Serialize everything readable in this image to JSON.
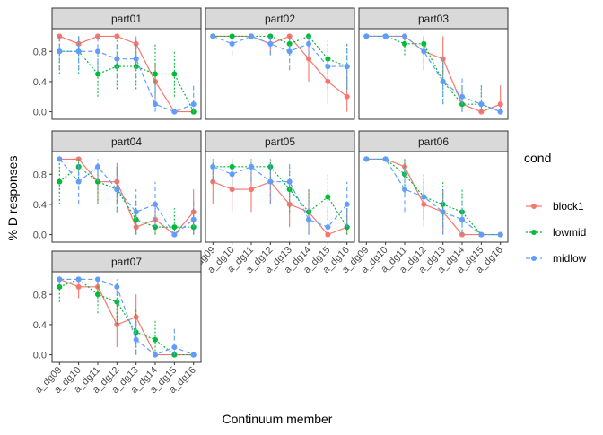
{
  "chart_data": {
    "type": "line",
    "xlabel": "Continuum member",
    "ylabel": "% D responses",
    "ylim": [
      -0.1,
      1.1
    ],
    "yticks": [
      0.0,
      0.4,
      0.8
    ],
    "ytick_labels": [
      "0.0",
      "0.4",
      "0.8"
    ],
    "categories": [
      "a_dg09",
      "a_dg10",
      "a_dg11",
      "a_dg12",
      "a_dg13",
      "a_dg14",
      "a_dg15",
      "a_dg16"
    ],
    "legend": {
      "title": "cond",
      "position": "right",
      "items": [
        {
          "name": "block1",
          "color": "#F8766D",
          "dash": "solid"
        },
        {
          "name": "lowmid",
          "color": "#00BA38",
          "dash": "dotted"
        },
        {
          "name": "midlow",
          "color": "#619CFF",
          "dash": "dashed"
        }
      ]
    },
    "panels": [
      {
        "name": "part01",
        "series": [
          {
            "name": "block1",
            "values": [
              1.0,
              0.9,
              1.0,
              1.0,
              0.9,
              0.4,
              0.0,
              0.0
            ],
            "lower": [
              1.0,
              0.75,
              1.0,
              1.0,
              0.75,
              0.1,
              0.0,
              0.0
            ],
            "upper": [
              1.0,
              1.0,
              1.0,
              1.0,
              1.0,
              0.65,
              0.0,
              0.0
            ]
          },
          {
            "name": "lowmid",
            "values": [
              0.8,
              0.8,
              0.5,
              0.6,
              0.6,
              0.5,
              0.5,
              0.0
            ],
            "lower": [
              0.5,
              0.5,
              0.2,
              0.3,
              0.3,
              0.2,
              0.2,
              0.0
            ],
            "upper": [
              1.0,
              1.0,
              0.8,
              0.9,
              0.9,
              0.9,
              0.8,
              0.0
            ]
          },
          {
            "name": "midlow",
            "values": [
              0.8,
              0.8,
              0.8,
              0.7,
              0.7,
              0.1,
              0.0,
              0.1
            ],
            "lower": [
              0.55,
              0.55,
              0.55,
              0.45,
              0.45,
              0.0,
              0.0,
              0.0
            ],
            "upper": [
              1.0,
              1.0,
              1.0,
              0.95,
              0.95,
              0.35,
              0.0,
              0.35
            ]
          }
        ]
      },
      {
        "name": "part02",
        "series": [
          {
            "name": "block1",
            "values": [
              1.0,
              1.0,
              1.0,
              0.9,
              1.0,
              0.7,
              0.4,
              0.2
            ],
            "lower": [
              1.0,
              1.0,
              1.0,
              0.75,
              1.0,
              0.4,
              0.1,
              0.0
            ],
            "upper": [
              1.0,
              1.0,
              1.0,
              1.0,
              1.0,
              1.0,
              0.7,
              0.5
            ]
          },
          {
            "name": "lowmid",
            "values": [
              1.0,
              1.0,
              1.0,
              1.0,
              0.9,
              1.0,
              0.7,
              0.6
            ],
            "lower": [
              1.0,
              1.0,
              1.0,
              1.0,
              0.75,
              1.0,
              0.4,
              0.3
            ],
            "upper": [
              1.0,
              1.0,
              1.0,
              1.0,
              1.0,
              1.0,
              0.95,
              0.9
            ]
          },
          {
            "name": "midlow",
            "values": [
              1.0,
              0.9,
              1.0,
              0.9,
              0.8,
              0.9,
              0.6,
              0.6
            ],
            "lower": [
              1.0,
              0.75,
              1.0,
              0.75,
              0.55,
              0.75,
              0.3,
              0.3
            ],
            "upper": [
              1.0,
              1.0,
              1.0,
              1.0,
              1.0,
              1.0,
              0.9,
              0.9
            ]
          }
        ]
      },
      {
        "name": "part03",
        "series": [
          {
            "name": "block1",
            "values": [
              1.0,
              1.0,
              1.0,
              0.8,
              0.7,
              0.1,
              0.0,
              0.1
            ],
            "lower": [
              1.0,
              1.0,
              1.0,
              0.55,
              0.4,
              0.0,
              0.0,
              0.0
            ],
            "upper": [
              1.0,
              1.0,
              1.0,
              1.0,
              1.0,
              0.35,
              0.0,
              0.35
            ]
          },
          {
            "name": "lowmid",
            "values": [
              1.0,
              1.0,
              0.9,
              0.9,
              0.4,
              0.1,
              0.1,
              0.0
            ],
            "lower": [
              1.0,
              1.0,
              0.75,
              0.75,
              0.1,
              0.0,
              0.0,
              0.0
            ],
            "upper": [
              1.0,
              1.0,
              1.0,
              1.0,
              0.7,
              0.35,
              0.35,
              0.0
            ]
          },
          {
            "name": "midlow",
            "values": [
              1.0,
              1.0,
              1.0,
              0.8,
              0.4,
              0.2,
              0.1,
              0.0
            ],
            "lower": [
              1.0,
              1.0,
              1.0,
              0.55,
              0.1,
              0.0,
              0.0,
              0.0
            ],
            "upper": [
              1.0,
              1.0,
              1.0,
              1.0,
              0.7,
              0.45,
              0.35,
              0.0
            ]
          }
        ]
      },
      {
        "name": "part04",
        "series": [
          {
            "name": "block1",
            "values": [
              1.0,
              1.0,
              0.7,
              0.7,
              0.1,
              0.2,
              0.0,
              0.3
            ],
            "lower": [
              1.0,
              1.0,
              0.4,
              0.4,
              0.0,
              0.0,
              0.0,
              0.0
            ],
            "upper": [
              1.0,
              1.0,
              0.95,
              0.95,
              0.35,
              0.45,
              0.0,
              0.6
            ]
          },
          {
            "name": "lowmid",
            "values": [
              0.7,
              0.9,
              0.7,
              0.6,
              0.2,
              0.1,
              0.1,
              0.1
            ],
            "lower": [
              0.4,
              0.7,
              0.4,
              0.3,
              0.0,
              0.0,
              0.0,
              0.0
            ],
            "upper": [
              0.95,
              1.0,
              0.95,
              0.9,
              0.45,
              0.35,
              0.35,
              0.35
            ]
          },
          {
            "name": "midlow",
            "values": [
              1.0,
              0.7,
              0.9,
              0.6,
              0.3,
              0.4,
              0.0,
              0.2
            ],
            "lower": [
              1.0,
              0.4,
              0.7,
              0.3,
              0.0,
              0.1,
              0.0,
              0.0
            ],
            "upper": [
              1.0,
              0.95,
              1.0,
              0.9,
              0.6,
              0.7,
              0.0,
              0.45
            ]
          }
        ]
      },
      {
        "name": "part05",
        "series": [
          {
            "name": "block1",
            "values": [
              0.7,
              0.6,
              0.6,
              0.7,
              0.4,
              0.3,
              0.0,
              0.1
            ],
            "lower": [
              0.4,
              0.3,
              0.3,
              0.4,
              0.1,
              0.0,
              0.0,
              0.0
            ],
            "upper": [
              0.95,
              0.9,
              0.9,
              0.95,
              0.7,
              0.6,
              0.0,
              0.35
            ]
          },
          {
            "name": "lowmid",
            "values": [
              0.9,
              0.9,
              0.9,
              0.9,
              0.6,
              0.3,
              0.5,
              0.1
            ],
            "lower": [
              0.7,
              0.7,
              0.7,
              0.7,
              0.3,
              0.0,
              0.2,
              0.0
            ],
            "upper": [
              1.0,
              1.0,
              1.0,
              1.0,
              0.9,
              0.6,
              0.8,
              0.35
            ]
          },
          {
            "name": "midlow",
            "values": [
              0.9,
              0.8,
              0.9,
              0.7,
              0.7,
              0.2,
              0.1,
              0.4
            ],
            "lower": [
              0.7,
              0.55,
              0.7,
              0.4,
              0.4,
              0.0,
              0.0,
              0.1
            ],
            "upper": [
              1.0,
              1.0,
              1.0,
              0.95,
              0.95,
              0.45,
              0.35,
              0.7
            ]
          }
        ]
      },
      {
        "name": "part06",
        "series": [
          {
            "name": "block1",
            "values": [
              1.0,
              1.0,
              0.9,
              0.4,
              0.3,
              0.0,
              0.0,
              0.0
            ],
            "lower": [
              1.0,
              1.0,
              0.75,
              0.1,
              0.0,
              0.0,
              0.0,
              0.0
            ],
            "upper": [
              1.0,
              1.0,
              1.0,
              0.7,
              0.6,
              0.0,
              0.0,
              0.0
            ]
          },
          {
            "name": "lowmid",
            "values": [
              1.0,
              1.0,
              0.8,
              0.5,
              0.4,
              0.3,
              0.0,
              0.0
            ],
            "lower": [
              1.0,
              1.0,
              0.55,
              0.2,
              0.1,
              0.0,
              0.0,
              0.0
            ],
            "upper": [
              1.0,
              1.0,
              1.0,
              0.8,
              0.7,
              0.6,
              0.0,
              0.0
            ]
          },
          {
            "name": "midlow",
            "values": [
              1.0,
              1.0,
              0.6,
              0.5,
              0.3,
              0.2,
              0.0,
              0.0
            ],
            "lower": [
              1.0,
              1.0,
              0.3,
              0.2,
              0.0,
              0.0,
              0.0,
              0.0
            ],
            "upper": [
              1.0,
              1.0,
              0.9,
              0.8,
              0.6,
              0.45,
              0.0,
              0.0
            ]
          }
        ]
      },
      {
        "name": "part07",
        "series": [
          {
            "name": "block1",
            "values": [
              1.0,
              0.9,
              0.9,
              0.4,
              0.5,
              0.0,
              0.0,
              0.0
            ],
            "lower": [
              1.0,
              0.75,
              0.75,
              0.1,
              0.2,
              0.0,
              0.0,
              0.0
            ],
            "upper": [
              1.0,
              1.0,
              1.0,
              0.7,
              0.8,
              0.0,
              0.0,
              0.0
            ]
          },
          {
            "name": "lowmid",
            "values": [
              0.9,
              1.0,
              0.8,
              0.7,
              0.3,
              0.2,
              0.0,
              0.0
            ],
            "lower": [
              0.7,
              1.0,
              0.55,
              0.4,
              0.0,
              0.0,
              0.0,
              0.0
            ],
            "upper": [
              1.0,
              1.0,
              1.0,
              0.95,
              0.6,
              0.45,
              0.0,
              0.0
            ]
          },
          {
            "name": "midlow",
            "values": [
              1.0,
              1.0,
              1.0,
              0.9,
              0.2,
              0.0,
              0.1,
              0.0
            ],
            "lower": [
              1.0,
              1.0,
              1.0,
              0.7,
              0.0,
              0.0,
              0.0,
              0.0
            ],
            "upper": [
              1.0,
              1.0,
              1.0,
              1.0,
              0.45,
              0.0,
              0.35,
              0.0
            ]
          }
        ]
      }
    ]
  }
}
